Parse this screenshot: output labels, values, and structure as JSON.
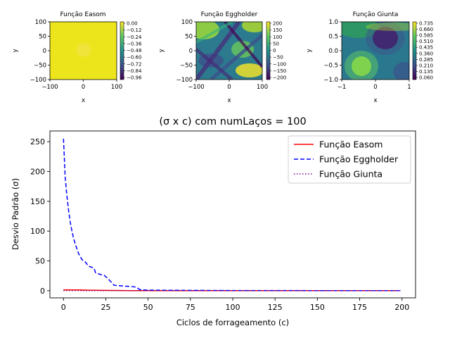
{
  "chart_data": [
    {
      "type": "heatmap",
      "title": "Função Easom",
      "xlabel": "x",
      "ylabel": "y",
      "xlim": [
        -100,
        100
      ],
      "ylim": [
        -100,
        100
      ],
      "xticks": [
        "−100",
        "0",
        "100"
      ],
      "yticks": [
        "100",
        "50",
        "0",
        "−50",
        "−100"
      ],
      "colorbar_ticks": [
        "0.00",
        "−0.12",
        "−0.24",
        "−0.36",
        "−0.48",
        "−0.60",
        "−0.72",
        "−0.84",
        "−0.96"
      ],
      "colormap": "viridis"
    },
    {
      "type": "heatmap",
      "title": "Função Eggholder",
      "xlabel": "x",
      "ylabel": "y",
      "xlim": [
        -100,
        100
      ],
      "ylim": [
        -100,
        100
      ],
      "xticks": [
        "−100",
        "0",
        "100"
      ],
      "yticks": [
        "100",
        "50",
        "0",
        "−50",
        "−100"
      ],
      "colorbar_ticks": [
        "200",
        "150",
        "100",
        "50",
        "0",
        "−50",
        "−100",
        "−150",
        "−200"
      ],
      "colormap": "viridis"
    },
    {
      "type": "heatmap",
      "title": "Função Giunta",
      "xlabel": "x",
      "ylabel": "y",
      "xlim": [
        -1,
        1
      ],
      "ylim": [
        -1,
        1
      ],
      "xticks": [
        "−1",
        "0",
        "1"
      ],
      "yticks": [
        "1.0",
        "0.5",
        "0.0",
        "−0.5",
        "−1.0"
      ],
      "colorbar_ticks": [
        "0.735",
        "0.660",
        "0.585",
        "0.510",
        "0.435",
        "0.360",
        "0.285",
        "0.210",
        "0.135",
        "0.060"
      ],
      "colormap": "viridis"
    },
    {
      "type": "line",
      "title": "(σ x c) com numLaços = 100",
      "xlabel": "Ciclos de forrageamento (c)",
      "ylabel": "Desvio Padrão (σ)",
      "xlim": [
        -8,
        208
      ],
      "ylim": [
        -12,
        268
      ],
      "xticks": [
        0,
        25,
        50,
        75,
        100,
        125,
        150,
        175,
        200
      ],
      "yticks": [
        0,
        50,
        100,
        150,
        200,
        250
      ],
      "legend_position": "top-right",
      "grid": false,
      "series": [
        {
          "name": "Função Easom",
          "color": "#ff0000",
          "dash": "solid",
          "x": [
            0,
            5,
            10,
            15,
            20,
            30,
            40,
            50,
            100,
            150,
            199
          ],
          "y": [
            1.5,
            1.4,
            1.2,
            0.9,
            0.7,
            0.4,
            0.2,
            0.1,
            0.0,
            0.0,
            0.0
          ]
        },
        {
          "name": "Função Eggholder",
          "color": "#0000ff",
          "dash": "dashed",
          "x": [
            0,
            1,
            2,
            3,
            4,
            5,
            6,
            7,
            8,
            9,
            10,
            11,
            12,
            13,
            14,
            15,
            16,
            17,
            18,
            19,
            20,
            22,
            24,
            26,
            28,
            30,
            35,
            40,
            43,
            45,
            47,
            50,
            60,
            80,
            100,
            150,
            199
          ],
          "y": [
            255,
            190,
            160,
            135,
            115,
            100,
            88,
            78,
            70,
            62,
            57,
            52,
            50,
            48,
            44,
            41,
            40,
            39,
            38,
            30,
            29,
            27,
            26,
            21,
            15,
            9,
            8,
            7,
            6,
            2,
            1.5,
            1,
            0.8,
            0.5,
            0.3,
            0.2,
            0.1
          ]
        },
        {
          "name": "Função Giunta",
          "color": "#800080",
          "dash": "dotted",
          "x": [
            0,
            10,
            20,
            50,
            100,
            150,
            199
          ],
          "y": [
            0.3,
            0.2,
            0.1,
            0.05,
            0.0,
            0.0,
            0.0
          ]
        }
      ]
    }
  ]
}
